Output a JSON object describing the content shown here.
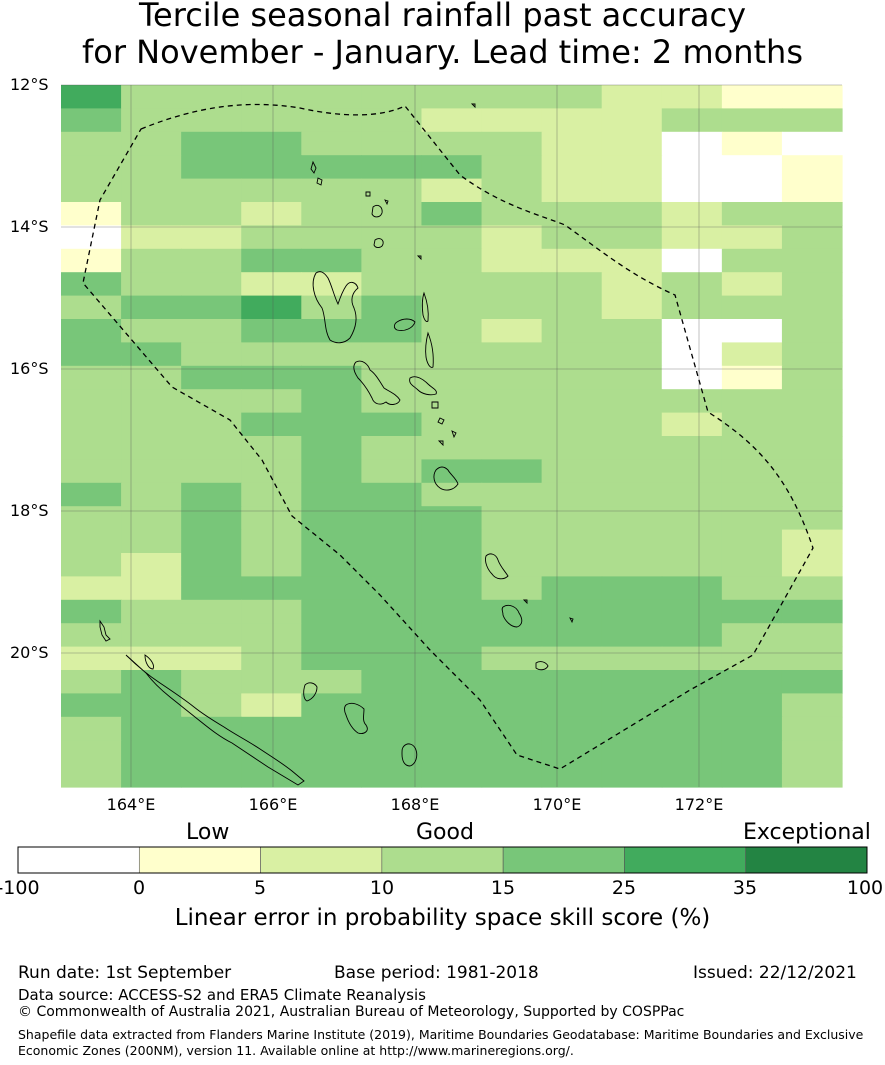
{
  "title": {
    "line1": "Tercile seasonal rainfall past accuracy",
    "line2": "for November - January. Lead time: 2 months"
  },
  "map": {
    "lat_labels": [
      "12°S",
      "14°S",
      "16°S",
      "18°S",
      "20°S"
    ],
    "lon_labels": [
      "164°E",
      "166°E",
      "168°E",
      "170°E",
      "172°E"
    ],
    "grid": [
      "5333333332211",
      "4333332222333",
      "3344333322010",
      "3344444322001",
      "3333332322001",
      "1332334333233",
      "0223333233223",
      "1334433222033",
      "4332233332323",
      "3445343332333",
      "4334443233003",
      "4433333333023",
      "3344433333013",
      "3333433333333",
      "3334443333233",
      "3333433333333",
      "3333434433333",
      "4343443333333",
      "3343444333333",
      "3343444333332",
      "3243444333332",
      "2244444344433",
      "4333444444444",
      "3333444444433",
      "2223444333333",
      "3433344444444",
      "4432444444443",
      "3444444444443",
      "3444444444443",
      "3444444444443"
    ]
  },
  "legend": {
    "categories": [
      "Low",
      "Good",
      "Exceptional"
    ],
    "ticks": [
      "-100",
      "0",
      "5",
      "10",
      "15",
      "25",
      "35",
      "100"
    ],
    "bins": [
      {
        "from": -100,
        "to": 0,
        "color": "#ffffff"
      },
      {
        "from": 0,
        "to": 5,
        "color": "#ffffcc"
      },
      {
        "from": 5,
        "to": 10,
        "color": "#d9f0a3"
      },
      {
        "from": 10,
        "to": 15,
        "color": "#addd8e"
      },
      {
        "from": 15,
        "to": 25,
        "color": "#78c679"
      },
      {
        "from": 25,
        "to": 35,
        "color": "#41ab5d"
      },
      {
        "from": 35,
        "to": 100,
        "color": "#238443"
      }
    ],
    "title": "Linear error in probability space skill score (%)"
  },
  "footer": {
    "run_date": "Run date: 1st September",
    "base_period": "Base period: 1981-2018",
    "issued": "Issued: 22/12/2021",
    "data_source": "Data source: ACCESS-S2 and ERA5 Climate Reanalysis",
    "copyright": "© Commonwealth of Australia 2021, Australian Bureau of Meteorology, Supported by COSPPac",
    "shapefile_line1": "Shapefile data extracted from Flanders Marine Institute (2019), Maritime Boundaries Geodatabase: Maritime Boundaries and Exclusive",
    "shapefile_line2": "Economic Zones (200NM), version 11. Available online at http://www.marineregions.org/."
  }
}
